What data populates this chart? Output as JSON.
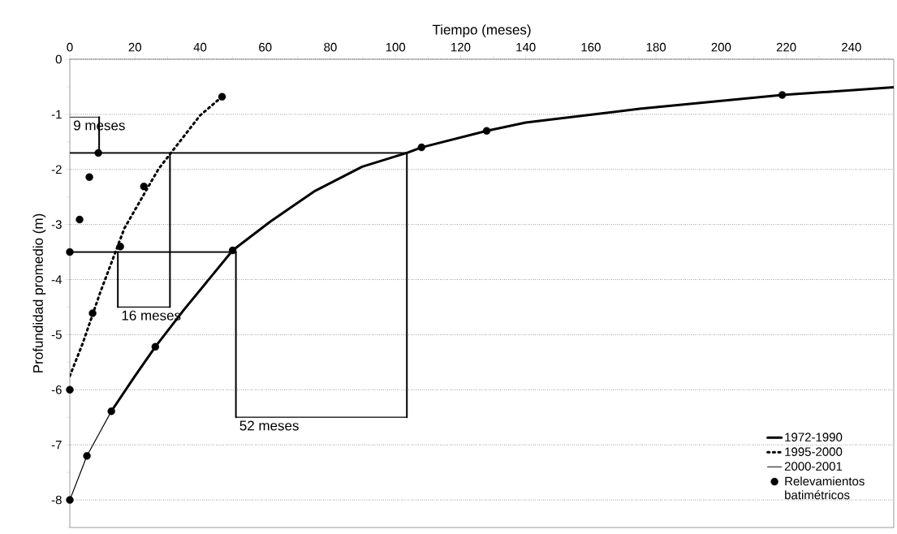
{
  "chart_data": {
    "type": "line",
    "xlabel": "Tiempo (meses)",
    "ylabel": "Profundidad promedio (m)",
    "xlim": [
      0,
      253
    ],
    "ylim": [
      -8.5,
      0
    ],
    "xticks": [
      0,
      20,
      40,
      60,
      80,
      100,
      120,
      140,
      160,
      180,
      200,
      220,
      240,
      {
        "value": 10,
        "label": null
      },
      {
        "value": 30,
        "label": null
      },
      {
        "value": 50,
        "label": null
      },
      {
        "value": 70,
        "label": null
      },
      {
        "value": 90,
        "label": null
      },
      {
        "value": 110,
        "label": null
      },
      {
        "value": 130,
        "label": null
      },
      {
        "value": 150,
        "label": null
      },
      {
        "value": 170,
        "label": null
      },
      {
        "value": 190,
        "label": null
      },
      {
        "value": 210,
        "label": null
      },
      {
        "value": 230,
        "label": null
      },
      {
        "value": 250,
        "label": null
      }
    ],
    "yticks": [
      0,
      -1,
      -2,
      -3,
      -4,
      -5,
      -6,
      -7,
      -8,
      {
        "value": -0.5,
        "label": null
      },
      {
        "value": -1.5,
        "label": null
      },
      {
        "value": -2.5,
        "label": null
      },
      {
        "value": -3.5,
        "label": null
      },
      {
        "value": -4.5,
        "label": null
      },
      {
        "value": -5.5,
        "label": null
      },
      {
        "value": -6.5,
        "label": null
      },
      {
        "value": -7.5,
        "label": null
      },
      {
        "value": -8.5,
        "label": null
      }
    ],
    "grid": "y",
    "legend": "bottom right",
    "series": [
      {
        "name": "1972-1990",
        "line_style": "solid",
        "color": "#000000",
        "x": [
          12.75,
          20,
          26.25,
          35,
          50,
          61.5,
          75,
          89.8,
          103.5,
          108,
          128,
          140,
          175,
          218.75,
          253
        ],
        "values": [
          -6.39,
          -5.75,
          -5.22,
          -4.55,
          -3.47,
          -2.95,
          -2.4,
          -1.95,
          -1.7,
          -1.6,
          -1.3,
          -1.15,
          -0.9,
          -0.65,
          -0.51
        ]
      },
      {
        "name": "1995-2000",
        "line_style": "dotted",
        "color": "#000000",
        "x": [
          0,
          4,
          9.3,
          16.75,
          27.25,
          40,
          46.75
        ],
        "values": [
          -5.75,
          -5.15,
          -4.24,
          -3.07,
          -1.99,
          -1.02,
          -0.68
        ]
      },
      {
        "name": "2000-2001",
        "line_style": "solid",
        "color": "#000000",
        "x": [
          0,
          5.25,
          12.75
        ],
        "values": [
          -8,
          -7.2,
          -6.39
        ]
      },
      {
        "name": "Relevamientos batimétricos",
        "type": "scatter",
        "color": "#000000",
        "x": [
          0,
          5.25,
          12.75,
          26.25,
          50,
          108,
          128,
          218.75,
          0,
          0,
          3,
          6,
          8.75,
          7,
          15.5,
          22.75,
          46.75
        ],
        "values": [
          -8,
          -7.2,
          -6.39,
          -5.22,
          -3.47,
          -1.6,
          -1.3,
          -0.65,
          -6,
          -3.5,
          -2.91,
          -2.14,
          -1.7,
          -4.61,
          -3.4,
          -2.31,
          -0.68
        ]
      },
      {
        "line_style": "solid",
        "color": "#000000",
        "x": [
          0,
          103.5
        ],
        "values": [
          -1.7,
          -1.7
        ]
      },
      {
        "line_style": "solid",
        "color": "#000000",
        "x": [
          0,
          51
        ],
        "values": [
          -3.5,
          -3.5
        ]
      },
      {
        "line_style": "solid",
        "color": "#000000",
        "x": [
          9,
          9
        ],
        "values": [
          -1.05,
          -1.7
        ]
      },
      {
        "line_style": "solid",
        "color": "#000000",
        "x": [
          30.75,
          30.75
        ],
        "values": [
          -1.7,
          -4.5
        ]
      },
      {
        "line_style": "solid",
        "color": "#000000",
        "x": [
          14.75,
          14.75
        ],
        "values": [
          -3.5,
          -4.5
        ]
      },
      {
        "line_style": "solid",
        "color": "#000000",
        "x": [
          51,
          51
        ],
        "values": [
          -3.5,
          -6.5
        ]
      },
      {
        "line_style": "solid",
        "color": "#000000",
        "x": [
          103.5,
          103.5
        ],
        "values": [
          -1.7,
          -6.5
        ]
      },
      {
        "line_style": "solid",
        "color": "#000000",
        "x": [
          0,
          9
        ],
        "values": [
          -1.05,
          -1.05
        ]
      },
      {
        "line_style": "solid",
        "color": "#000000",
        "x": [
          14.75,
          30.75
        ],
        "values": [
          -4.5,
          -4.5
        ]
      },
      {
        "line_style": "solid",
        "color": "#000000",
        "x": [
          51,
          103.5
        ],
        "values": [
          -6.5,
          -6.5
        ]
      }
    ],
    "annotations": [
      "9 meses",
      "16 meses",
      "52 meses"
    ]
  }
}
